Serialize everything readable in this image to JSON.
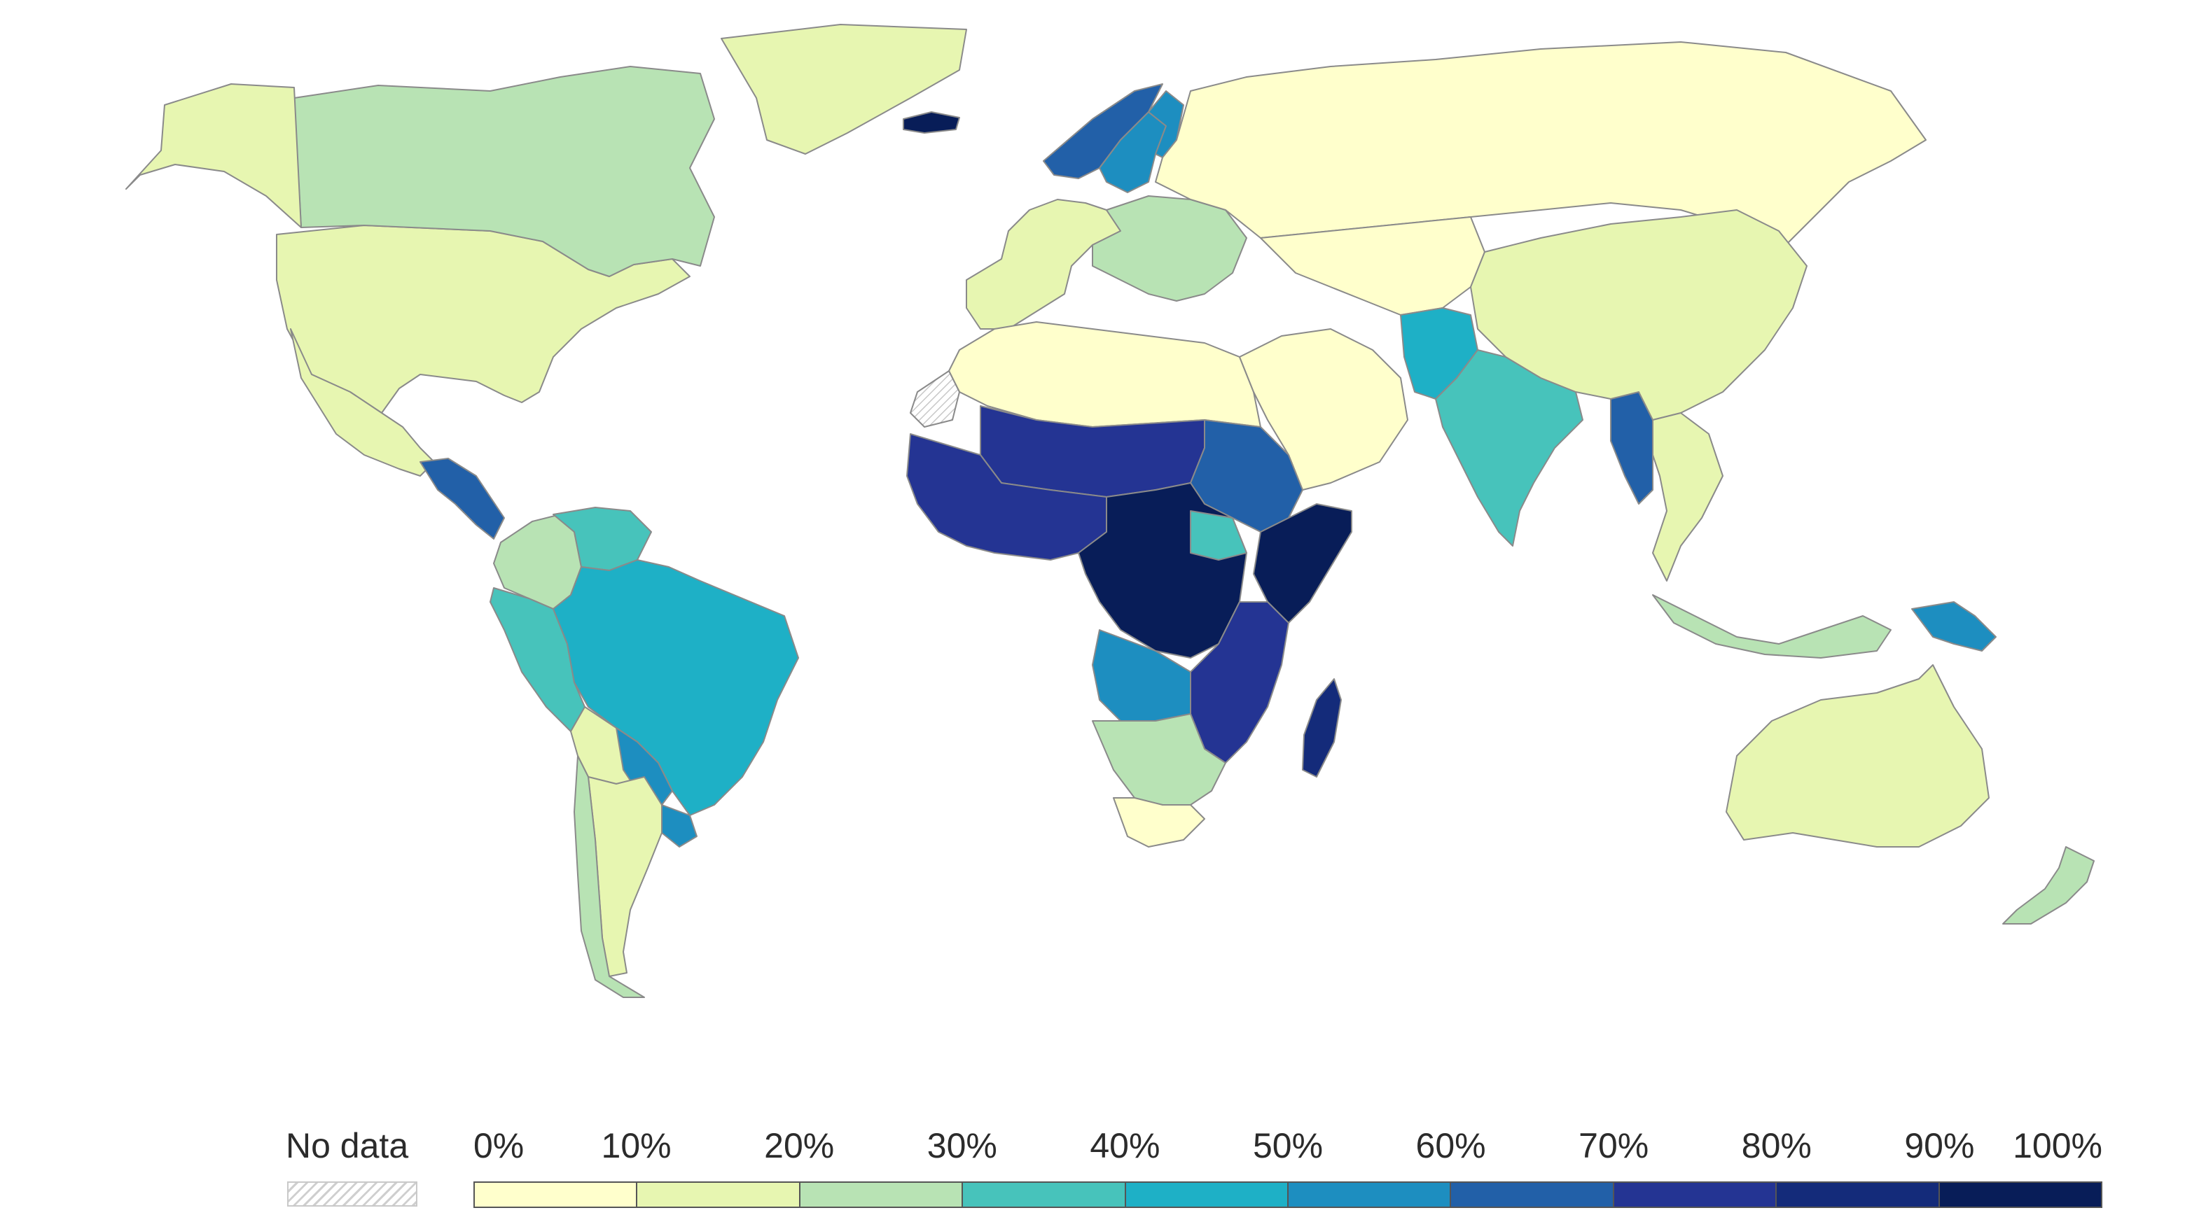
{
  "map": {
    "type": "choropleth",
    "legend": {
      "no_data_label": "No data",
      "ticks": [
        "0%",
        "10%",
        "20%",
        "30%",
        "40%",
        "50%",
        "60%",
        "70%",
        "80%",
        "90%",
        "100%"
      ],
      "colors": [
        "#ffffcc",
        "#e7f6b1",
        "#b8e3b4",
        "#47c3bb",
        "#1eb0c6",
        "#1d8ec0",
        "#2260a8",
        "#243493",
        "#142b7a",
        "#081d58"
      ],
      "no_data_pattern": "hatched"
    },
    "regions": [
      {
        "name": "North America",
        "bin": 1
      },
      {
        "name": "Canada",
        "bin": 2
      },
      {
        "name": "Greenland",
        "bin": 1
      },
      {
        "name": "Alaska",
        "bin": 1
      },
      {
        "name": "Mexico",
        "bin": 1
      },
      {
        "name": "Central America",
        "bin": 6
      },
      {
        "name": "Colombia",
        "bin": 2
      },
      {
        "name": "Venezuela",
        "bin": 3
      },
      {
        "name": "Peru",
        "bin": 3
      },
      {
        "name": "Brazil",
        "bin": 4
      },
      {
        "name": "Bolivia",
        "bin": 1
      },
      {
        "name": "Paraguay",
        "bin": 5
      },
      {
        "name": "Uruguay",
        "bin": 5
      },
      {
        "name": "Argentina",
        "bin": 1
      },
      {
        "name": "Chile",
        "bin": 2
      },
      {
        "name": "Iceland",
        "bin": 9
      },
      {
        "name": "Norway",
        "bin": 6
      },
      {
        "name": "Sweden",
        "bin": 5
      },
      {
        "name": "Finland",
        "bin": 5
      },
      {
        "name": "Western Europe",
        "bin": 1
      },
      {
        "name": "Eastern Europe",
        "bin": 2
      },
      {
        "name": "Russia",
        "bin": 0
      },
      {
        "name": "North Africa",
        "bin": 0
      },
      {
        "name": "Arabia",
        "bin": 0
      },
      {
        "name": "Central Asia",
        "bin": 0
      },
      {
        "name": "Sahel",
        "bin": 7
      },
      {
        "name": "Sudan",
        "bin": 6
      },
      {
        "name": "West Africa",
        "bin": 7
      },
      {
        "name": "Central Africa",
        "bin": 9
      },
      {
        "name": "South Sudan",
        "bin": 3
      },
      {
        "name": "Horn of Africa",
        "bin": 9
      },
      {
        "name": "East Africa",
        "bin": 7
      },
      {
        "name": "Angola",
        "bin": 5
      },
      {
        "name": "Southern Africa",
        "bin": 2
      },
      {
        "name": "South Africa",
        "bin": 0
      },
      {
        "name": "Madagascar",
        "bin": 8
      },
      {
        "name": "Pakistan",
        "bin": 4
      },
      {
        "name": "India",
        "bin": 3
      },
      {
        "name": "Myanmar",
        "bin": 6
      },
      {
        "name": "China",
        "bin": 1
      },
      {
        "name": "Southeast Asia",
        "bin": 1
      },
      {
        "name": "Indonesia",
        "bin": 2
      },
      {
        "name": "Papua New Guinea",
        "bin": 5
      },
      {
        "name": "Australia",
        "bin": 1
      },
      {
        "name": "New Zealand",
        "bin": 2
      },
      {
        "name": "Western Sahara",
        "bin": -1
      }
    ]
  }
}
